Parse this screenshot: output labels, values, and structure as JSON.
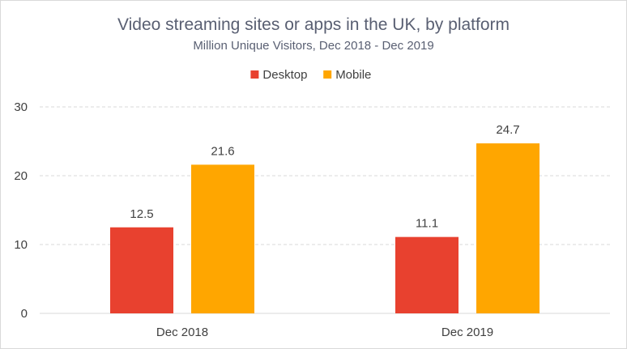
{
  "chart_data": {
    "type": "bar",
    "title": "Video streaming sites or apps in the UK, by platform",
    "subtitle": "Million Unique Visitors, Dec 2018 - Dec 2019",
    "categories": [
      "Dec 2018",
      "Dec 2019"
    ],
    "series": [
      {
        "name": "Desktop",
        "values": [
          12.5,
          11.1
        ],
        "color": "#e8412f"
      },
      {
        "name": "Mobile",
        "values": [
          21.6,
          24.7
        ],
        "color": "#ffa600"
      }
    ],
    "ylim": [
      0,
      30
    ],
    "yticks": [
      0,
      10,
      20,
      30
    ],
    "legend_position": "top-center",
    "grid": true
  }
}
